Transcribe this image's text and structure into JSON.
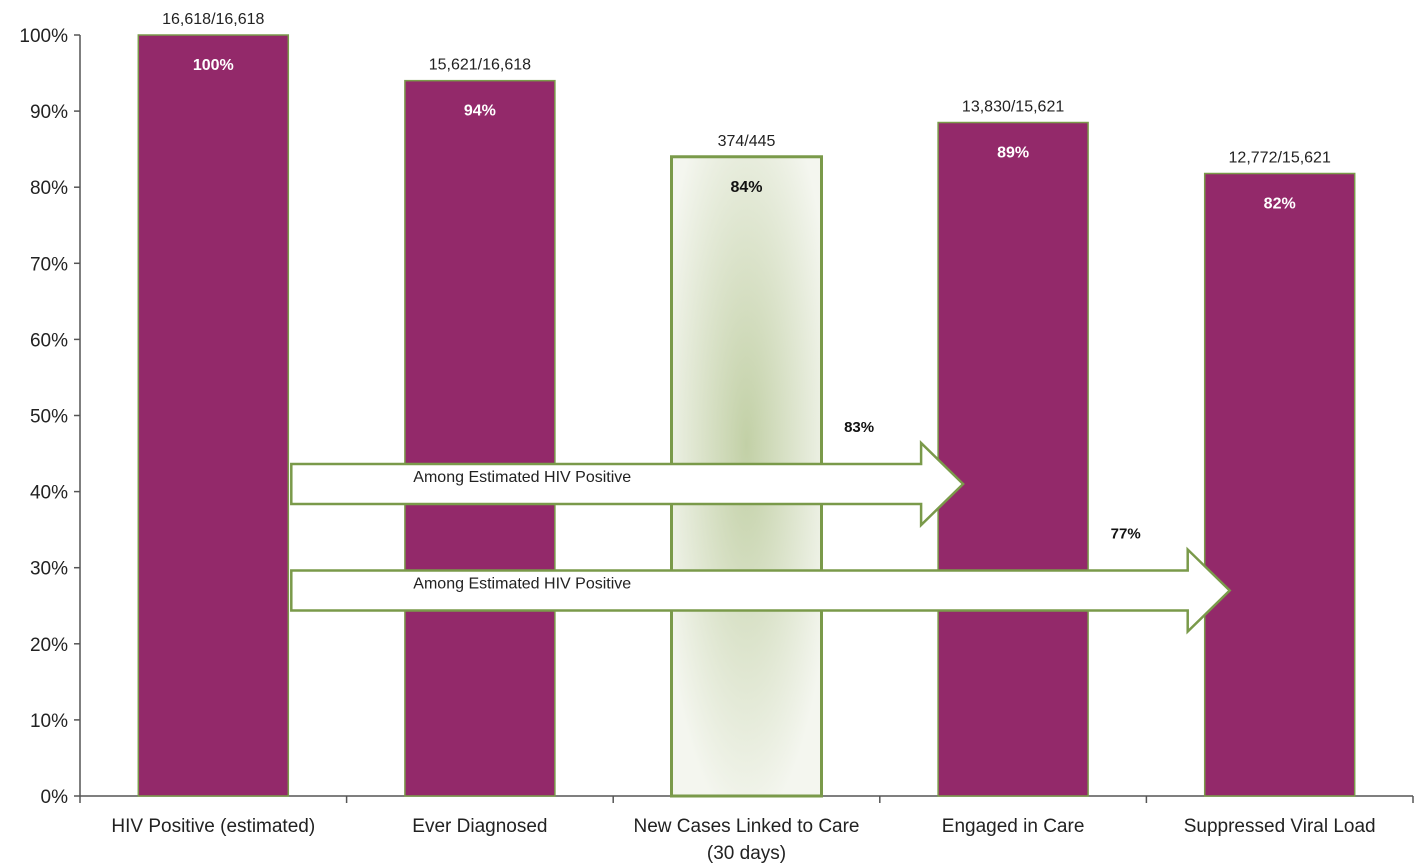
{
  "chart_data": {
    "type": "bar",
    "categories": [
      [
        "HIV Positive (estimated)"
      ],
      [
        "Ever Diagnosed"
      ],
      [
        "New Cases Linked to Care",
        "(30 days)"
      ],
      [
        "Engaged in Care"
      ],
      [
        "Suppressed Viral Load"
      ]
    ],
    "values": [
      100,
      94,
      84,
      88.5,
      81.8
    ],
    "value_labels": [
      "100%",
      "94%",
      "84%",
      "89%",
      "82%"
    ],
    "count_labels": [
      "16,618/16,618",
      "15,621/16,618",
      "374/445",
      "13,830/15,621",
      "12,772/15,621"
    ],
    "highlighted_index": 2,
    "ylim": [
      0,
      100
    ],
    "yticks": [
      "0%",
      "10%",
      "20%",
      "30%",
      "40%",
      "50%",
      "60%",
      "70%",
      "80%",
      "90%",
      "100%"
    ],
    "grid": false,
    "annotations": [
      {
        "label": "Among Estimated HIV Positive",
        "value_label": "83%",
        "from_category": 0,
        "to_category": 3,
        "level": 41
      },
      {
        "label": "Among Estimated HIV Positive",
        "value_label": "77%",
        "from_category": 0,
        "to_category": 4,
        "level": 27
      }
    ],
    "colors": {
      "bar": "#93296a",
      "highlight_fill_center": "#c2d0a6",
      "highlight_fill_edge": "#f4f6ef",
      "highlight_stroke": "#7a9a4a",
      "arrow_stroke": "#7a9a4a",
      "arrow_fill": "#ffffff"
    }
  }
}
